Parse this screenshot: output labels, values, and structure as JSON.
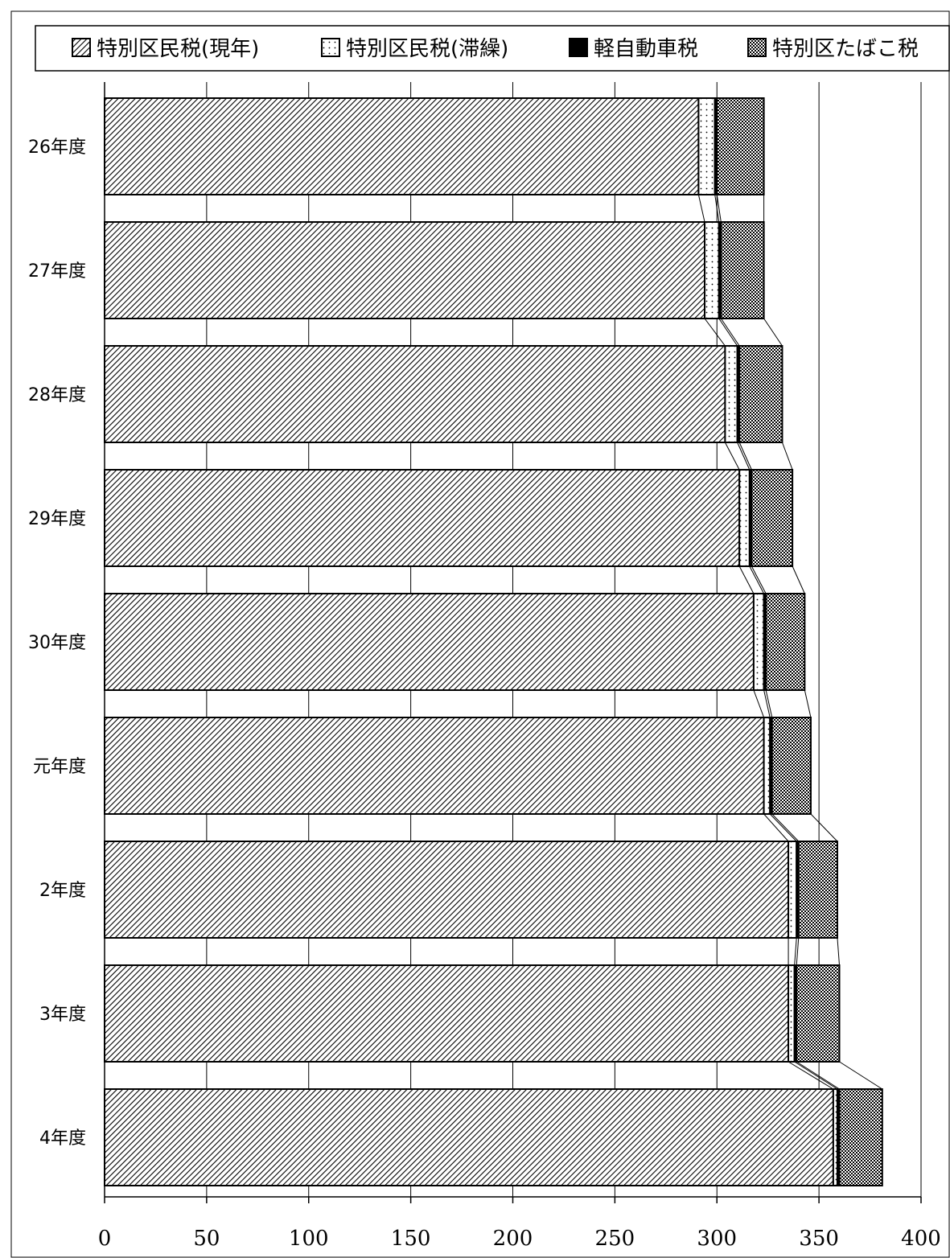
{
  "chart_data": {
    "type": "bar",
    "orientation": "horizontal",
    "stacked": true,
    "title": "",
    "xlabel": "",
    "ylabel": "",
    "xlim": [
      0,
      400
    ],
    "x_ticks": [
      "0",
      "50",
      "100",
      "150",
      "200",
      "250",
      "300",
      "350",
      "400"
    ],
    "grid": true,
    "legend_position": "top",
    "categories": [
      "26年度",
      "27年度",
      "28年度",
      "29年度",
      "30年度",
      "元年度",
      "2年度",
      "3年度",
      "4年度"
    ],
    "series": [
      {
        "name": "特別区民税(現年)",
        "pattern": "diagonal-hatch",
        "values": [
          291,
          294,
          304,
          311,
          318,
          323,
          335,
          335,
          357
        ]
      },
      {
        "name": "特別区民税(滞繰)",
        "pattern": "dots",
        "values": [
          8,
          7,
          6,
          5,
          5,
          3,
          4,
          3,
          2
        ]
      },
      {
        "name": "軽自動車税",
        "pattern": "solid-black",
        "values": [
          1,
          1,
          1,
          1,
          1,
          1,
          1,
          1,
          1
        ]
      },
      {
        "name": "特別区たばこ税",
        "pattern": "crosshatch-dense",
        "values": [
          23,
          21,
          21,
          20,
          19,
          19,
          19,
          21,
          21
        ]
      }
    ]
  }
}
